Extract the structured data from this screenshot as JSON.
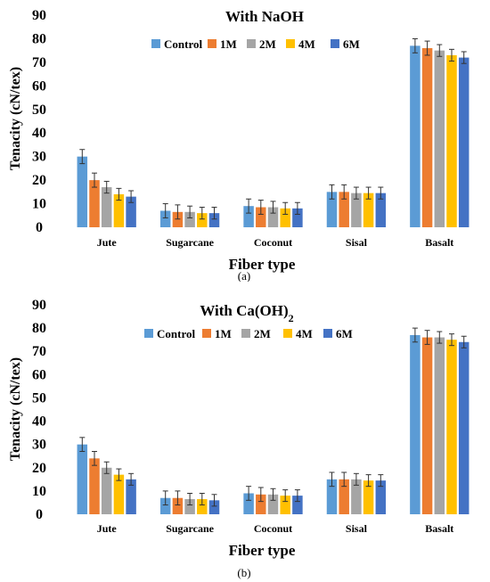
{
  "figure": {
    "panels": [
      {
        "caption": "(a)"
      },
      {
        "caption": "(b)"
      }
    ]
  },
  "chart_data": [
    {
      "type": "bar",
      "title": "With NaOH",
      "xlabel": "Fiber type",
      "ylabel": "Tenacity (cN/tex)",
      "ylim": [
        0,
        90
      ],
      "yticks": [
        0,
        10,
        20,
        30,
        40,
        50,
        60,
        70,
        80,
        90
      ],
      "grid": false,
      "legend": "top",
      "error_bars": true,
      "categories": [
        "Jute",
        "Sugarcane",
        "Coconut",
        "Sisal",
        "Basalt"
      ],
      "series": [
        {
          "name": "Control",
          "color": "#5B9BD5",
          "values": [
            30,
            7,
            9,
            15,
            77
          ],
          "errors": [
            3,
            3,
            3,
            3,
            3
          ]
        },
        {
          "name": "1M",
          "color": "#ED7D31",
          "values": [
            20,
            6.5,
            8.5,
            15,
            76
          ],
          "errors": [
            3,
            3,
            3,
            3,
            3
          ]
        },
        {
          "name": "2M",
          "color": "#A5A5A5",
          "values": [
            17,
            6.5,
            8.5,
            14.5,
            75
          ],
          "errors": [
            2.5,
            2.5,
            2.5,
            2.5,
            2.5
          ]
        },
        {
          "name": "4M",
          "color": "#FFC000",
          "values": [
            14,
            6,
            8,
            14.5,
            73
          ],
          "errors": [
            2.5,
            2.5,
            2.5,
            2.5,
            2.5
          ]
        },
        {
          "name": "6M",
          "color": "#4472C4",
          "values": [
            13,
            6,
            8,
            14.5,
            72
          ],
          "errors": [
            2.5,
            2.5,
            2.5,
            2.5,
            2.5
          ]
        }
      ]
    },
    {
      "type": "bar",
      "title": "With Ca(OH)",
      "title_subscript": "2",
      "xlabel": "Fiber type",
      "ylabel": "Tenacity (cN/tex)",
      "ylim": [
        0,
        90
      ],
      "yticks": [
        0,
        10,
        20,
        30,
        40,
        50,
        60,
        70,
        80,
        90
      ],
      "grid": false,
      "legend": "top",
      "error_bars": true,
      "categories": [
        "Jute",
        "Sugarcane",
        "Coconut",
        "Sisal",
        "Basalt"
      ],
      "series": [
        {
          "name": "Control",
          "color": "#5B9BD5",
          "values": [
            30,
            7,
            9,
            15,
            77
          ],
          "errors": [
            3,
            3,
            3,
            3,
            3
          ]
        },
        {
          "name": "1M",
          "color": "#ED7D31",
          "values": [
            24,
            7,
            8.5,
            15,
            76
          ],
          "errors": [
            3,
            3,
            3,
            3,
            3
          ]
        },
        {
          "name": "2M",
          "color": "#A5A5A5",
          "values": [
            20,
            6.5,
            8.5,
            15,
            76
          ],
          "errors": [
            2.5,
            2.5,
            2.5,
            2.5,
            2.5
          ]
        },
        {
          "name": "4M",
          "color": "#FFC000",
          "values": [
            17,
            6.5,
            8,
            14.5,
            75
          ],
          "errors": [
            2.5,
            2.5,
            2.5,
            2.5,
            2.5
          ]
        },
        {
          "name": "6M",
          "color": "#4472C4",
          "values": [
            15,
            6,
            8,
            14.5,
            74
          ],
          "errors": [
            2.5,
            2.5,
            2.5,
            2.5,
            2.5
          ]
        }
      ]
    }
  ]
}
